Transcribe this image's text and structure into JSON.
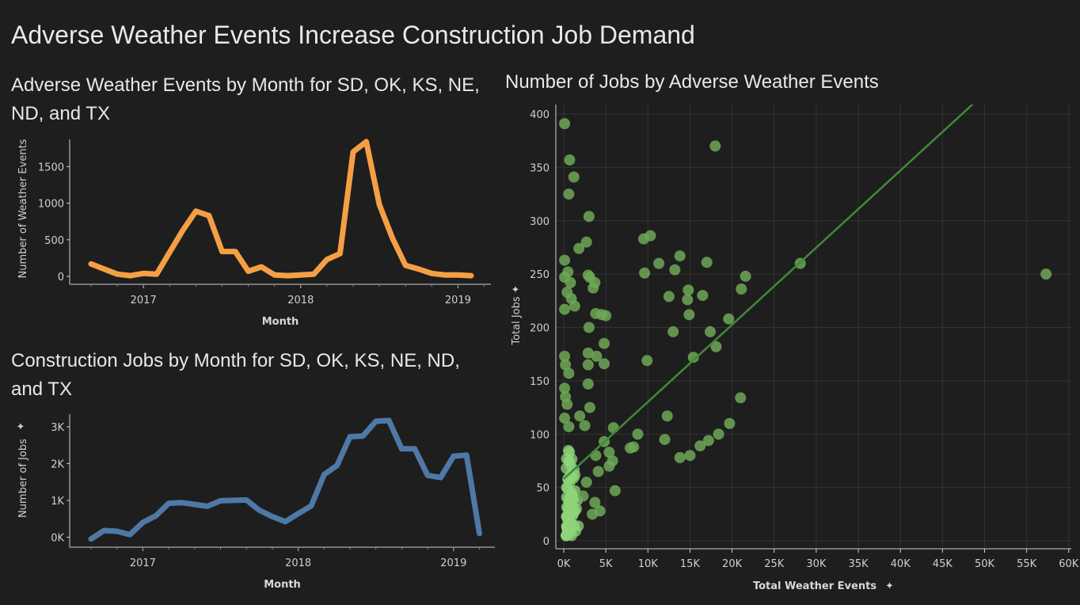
{
  "dashboard": {
    "title": "Adverse Weather Events Increase Construction Job Demand"
  },
  "chart_data": [
    {
      "type": "line",
      "title": "Adverse Weather Events by Month for SD, OK, KS, NE, ND, and TX",
      "xlabel": "Month",
      "ylabel": "Number of Weather Events",
      "x_ticks": [
        "2017",
        "2018",
        "2019"
      ],
      "y_ticks": [
        "0",
        "500",
        "1000",
        "1500"
      ],
      "ylim": [
        0,
        1850
      ],
      "color": "#f59f45",
      "series": [
        {
          "values": [
            [
              "2016-09",
              170
            ],
            [
              "2016-10",
              100
            ],
            [
              "2016-11",
              30
            ],
            [
              "2016-12",
              10
            ],
            [
              "2017-01",
              40
            ],
            [
              "2017-02",
              30
            ],
            [
              "2017-03",
              330
            ],
            [
              "2017-04",
              630
            ],
            [
              "2017-05",
              890
            ],
            [
              "2017-06",
              830
            ],
            [
              "2017-07",
              340
            ],
            [
              "2017-08",
              340
            ],
            [
              "2017-09",
              70
            ],
            [
              "2017-10",
              130
            ],
            [
              "2017-11",
              20
            ],
            [
              "2017-12",
              10
            ],
            [
              "2018-01",
              20
            ],
            [
              "2018-02",
              30
            ],
            [
              "2018-03",
              230
            ],
            [
              "2018-04",
              310
            ],
            [
              "2018-05",
              1700
            ],
            [
              "2018-06",
              1840
            ],
            [
              "2018-07",
              980
            ],
            [
              "2018-08",
              520
            ],
            [
              "2018-09",
              150
            ],
            [
              "2018-10",
              100
            ],
            [
              "2018-11",
              40
            ],
            [
              "2018-12",
              20
            ],
            [
              "2019-01",
              20
            ],
            [
              "2019-02",
              10
            ]
          ]
        }
      ]
    },
    {
      "type": "line",
      "title": "Construction Jobs by Month for SD, OK, KS, NE, ND, and TX",
      "xlabel": "Month",
      "ylabel": "Number of Jobs",
      "x_ticks": [
        "2017",
        "2018",
        "2019"
      ],
      "y_ticks": [
        "0K",
        "1K",
        "2K",
        "3K"
      ],
      "ylim": [
        -100,
        3300
      ],
      "color": "#4e79a7",
      "series": [
        {
          "values": [
            [
              "2016-09",
              -50
            ],
            [
              "2016-10",
              180
            ],
            [
              "2016-11",
              160
            ],
            [
              "2016-12",
              70
            ],
            [
              "2017-01",
              400
            ],
            [
              "2017-02",
              580
            ],
            [
              "2017-03",
              920
            ],
            [
              "2017-04",
              940
            ],
            [
              "2017-05",
              890
            ],
            [
              "2017-06",
              840
            ],
            [
              "2017-07",
              990
            ],
            [
              "2017-08",
              1000
            ],
            [
              "2017-09",
              1010
            ],
            [
              "2017-10",
              730
            ],
            [
              "2017-11",
              560
            ],
            [
              "2017-12",
              420
            ],
            [
              "2018-01",
              640
            ],
            [
              "2018-02",
              850
            ],
            [
              "2018-03",
              1700
            ],
            [
              "2018-04",
              1950
            ],
            [
              "2018-05",
              2730
            ],
            [
              "2018-06",
              2750
            ],
            [
              "2018-07",
              3150
            ],
            [
              "2018-08",
              3170
            ],
            [
              "2018-09",
              2400
            ],
            [
              "2018-10",
              2400
            ],
            [
              "2018-11",
              1680
            ],
            [
              "2018-12",
              1620
            ],
            [
              "2019-01",
              2200
            ],
            [
              "2019-02",
              2230
            ],
            [
              "2019-03",
              100
            ]
          ]
        }
      ]
    },
    {
      "type": "scatter",
      "title": "Number of Jobs by Adverse Weather Events",
      "xlabel": "Total Weather Events",
      "ylabel": "Total Jobs",
      "x_ticks": [
        "0K",
        "5K",
        "10K",
        "15K",
        "20K",
        "25K",
        "30K",
        "35K",
        "40K",
        "45K",
        "50K",
        "55K",
        "60K"
      ],
      "y_ticks": [
        "0",
        "50",
        "100",
        "150",
        "200",
        "250",
        "300",
        "350",
        "400"
      ],
      "xlim": [
        -1000,
        61500
      ],
      "ylim": [
        -10,
        410
      ],
      "grid": true,
      "point_color": "#6ea857",
      "trend_line": {
        "color": "#3e8a3a",
        "x": [
          0,
          48700
        ],
        "y": [
          58,
          410
        ]
      },
      "points": [
        [
          100,
          391
        ],
        [
          700,
          357
        ],
        [
          1200,
          341
        ],
        [
          600,
          325
        ],
        [
          3000,
          304
        ],
        [
          2700,
          280
        ],
        [
          1800,
          274
        ],
        [
          100,
          263
        ],
        [
          500,
          252
        ],
        [
          2900,
          249
        ],
        [
          3100,
          247
        ],
        [
          3700,
          242
        ],
        [
          3500,
          237
        ],
        [
          800,
          242
        ],
        [
          100,
          247
        ],
        [
          400,
          233
        ],
        [
          900,
          227
        ],
        [
          1300,
          220
        ],
        [
          100,
          217
        ],
        [
          3800,
          213
        ],
        [
          4500,
          212
        ],
        [
          5000,
          211
        ],
        [
          3000,
          200
        ],
        [
          4800,
          185
        ],
        [
          2900,
          176
        ],
        [
          3900,
          173
        ],
        [
          100,
          173
        ],
        [
          200,
          165
        ],
        [
          2900,
          165
        ],
        [
          4800,
          166
        ],
        [
          600,
          157
        ],
        [
          2900,
          147
        ],
        [
          100,
          143
        ],
        [
          200,
          135
        ],
        [
          400,
          128
        ],
        [
          3100,
          125
        ],
        [
          1900,
          117
        ],
        [
          100,
          115
        ],
        [
          600,
          107
        ],
        [
          2500,
          108
        ],
        [
          9500,
          283
        ],
        [
          10300,
          286
        ],
        [
          11300,
          260
        ],
        [
          13200,
          254
        ],
        [
          13800,
          267
        ],
        [
          9600,
          251
        ],
        [
          12500,
          229
        ],
        [
          14800,
          235
        ],
        [
          14700,
          226
        ],
        [
          14900,
          212
        ],
        [
          13000,
          196
        ],
        [
          9900,
          169
        ],
        [
          15400,
          172
        ],
        [
          16500,
          230
        ],
        [
          17000,
          261
        ],
        [
          17400,
          196
        ],
        [
          18000,
          370
        ],
        [
          18100,
          182
        ],
        [
          19600,
          208
        ],
        [
          21100,
          236
        ],
        [
          21600,
          248
        ],
        [
          28100,
          260
        ],
        [
          57300,
          250
        ],
        [
          12300,
          117
        ],
        [
          5900,
          106
        ],
        [
          8800,
          100
        ],
        [
          12000,
          95
        ],
        [
          13800,
          78
        ],
        [
          15000,
          80
        ],
        [
          16200,
          89
        ],
        [
          17200,
          94
        ],
        [
          18400,
          100
        ],
        [
          19700,
          110
        ],
        [
          21000,
          134
        ],
        [
          8300,
          88
        ],
        [
          7900,
          87
        ],
        [
          5800,
          75
        ],
        [
          5400,
          70
        ],
        [
          4100,
          65
        ],
        [
          6100,
          47
        ],
        [
          3700,
          36
        ],
        [
          4300,
          28
        ],
        [
          3400,
          25
        ],
        [
          4800,
          93
        ],
        [
          5400,
          83
        ],
        [
          3800,
          80
        ],
        [
          2700,
          55
        ],
        [
          2300,
          42
        ]
      ]
    }
  ]
}
